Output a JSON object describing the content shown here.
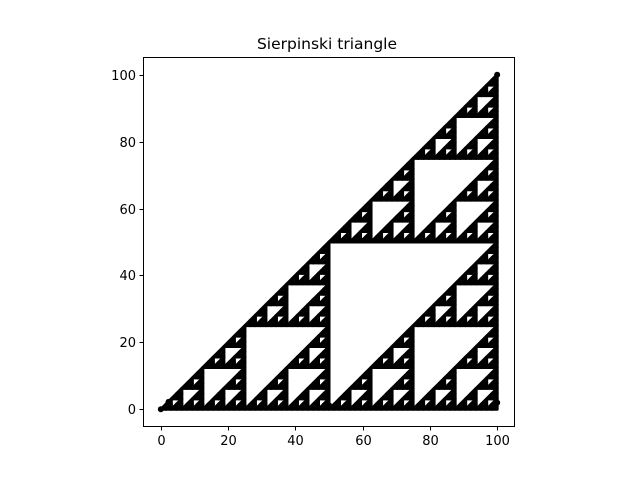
{
  "chart_data": {
    "type": "scatter",
    "title": "Sierpinski triangle",
    "xlabel": "",
    "ylabel": "",
    "xlim": [
      -5,
      105
    ],
    "ylim": [
      -5,
      105
    ],
    "xticks": [
      0,
      20,
      40,
      60,
      80,
      100
    ],
    "yticks": [
      0,
      20,
      40,
      60,
      80,
      100
    ],
    "xtick_labels": [
      "0",
      "20",
      "40",
      "60",
      "80",
      "100"
    ],
    "ytick_labels": [
      "0",
      "20",
      "40",
      "60",
      "80",
      "100"
    ],
    "grid": false,
    "marker_color": "#000000",
    "pattern": "sierpinski-right-triangle",
    "vertices": [
      [
        0,
        0
      ],
      [
        100,
        0
      ],
      [
        100,
        100
      ]
    ],
    "recursion_depth": 6,
    "series": [
      {
        "points": [
          [
            0,
            0
          ],
          [
            2.3,
            2.2
          ],
          [
            100,
            100
          ],
          [
            50,
            1.2
          ],
          [
            100,
            2
          ]
        ]
      }
    ]
  }
}
